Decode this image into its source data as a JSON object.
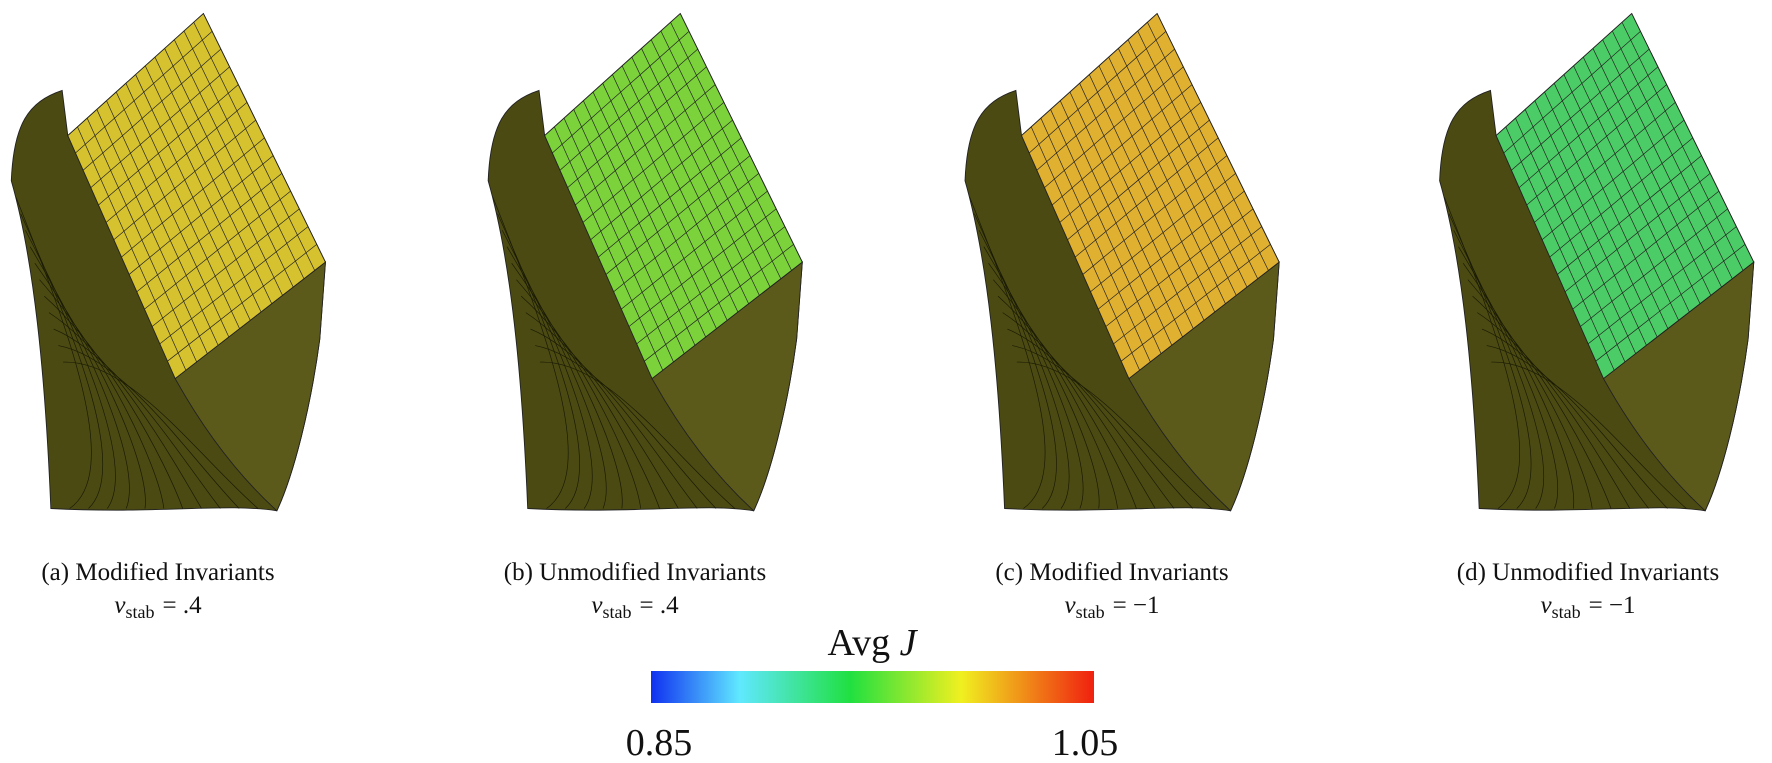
{
  "captions": [
    {
      "label": "(a) Modified Invariants",
      "symbol": "ν",
      "subscript": "stab",
      "value": "= .4"
    },
    {
      "label": "(b) Unmodified Invariants",
      "symbol": "ν",
      "subscript": "stab",
      "value": "= .4"
    },
    {
      "label": "(c) Modified Invariants",
      "symbol": "ν",
      "subscript": "stab",
      "value": "= −1"
    },
    {
      "label": "(d) Unmodified Invariants",
      "symbol": "ν",
      "subscript": "stab",
      "value": "= −1"
    }
  ],
  "colorbar": {
    "title": "Avg",
    "title_symbol": "J",
    "min_label": "0.85",
    "max_label": "1.05"
  }
}
